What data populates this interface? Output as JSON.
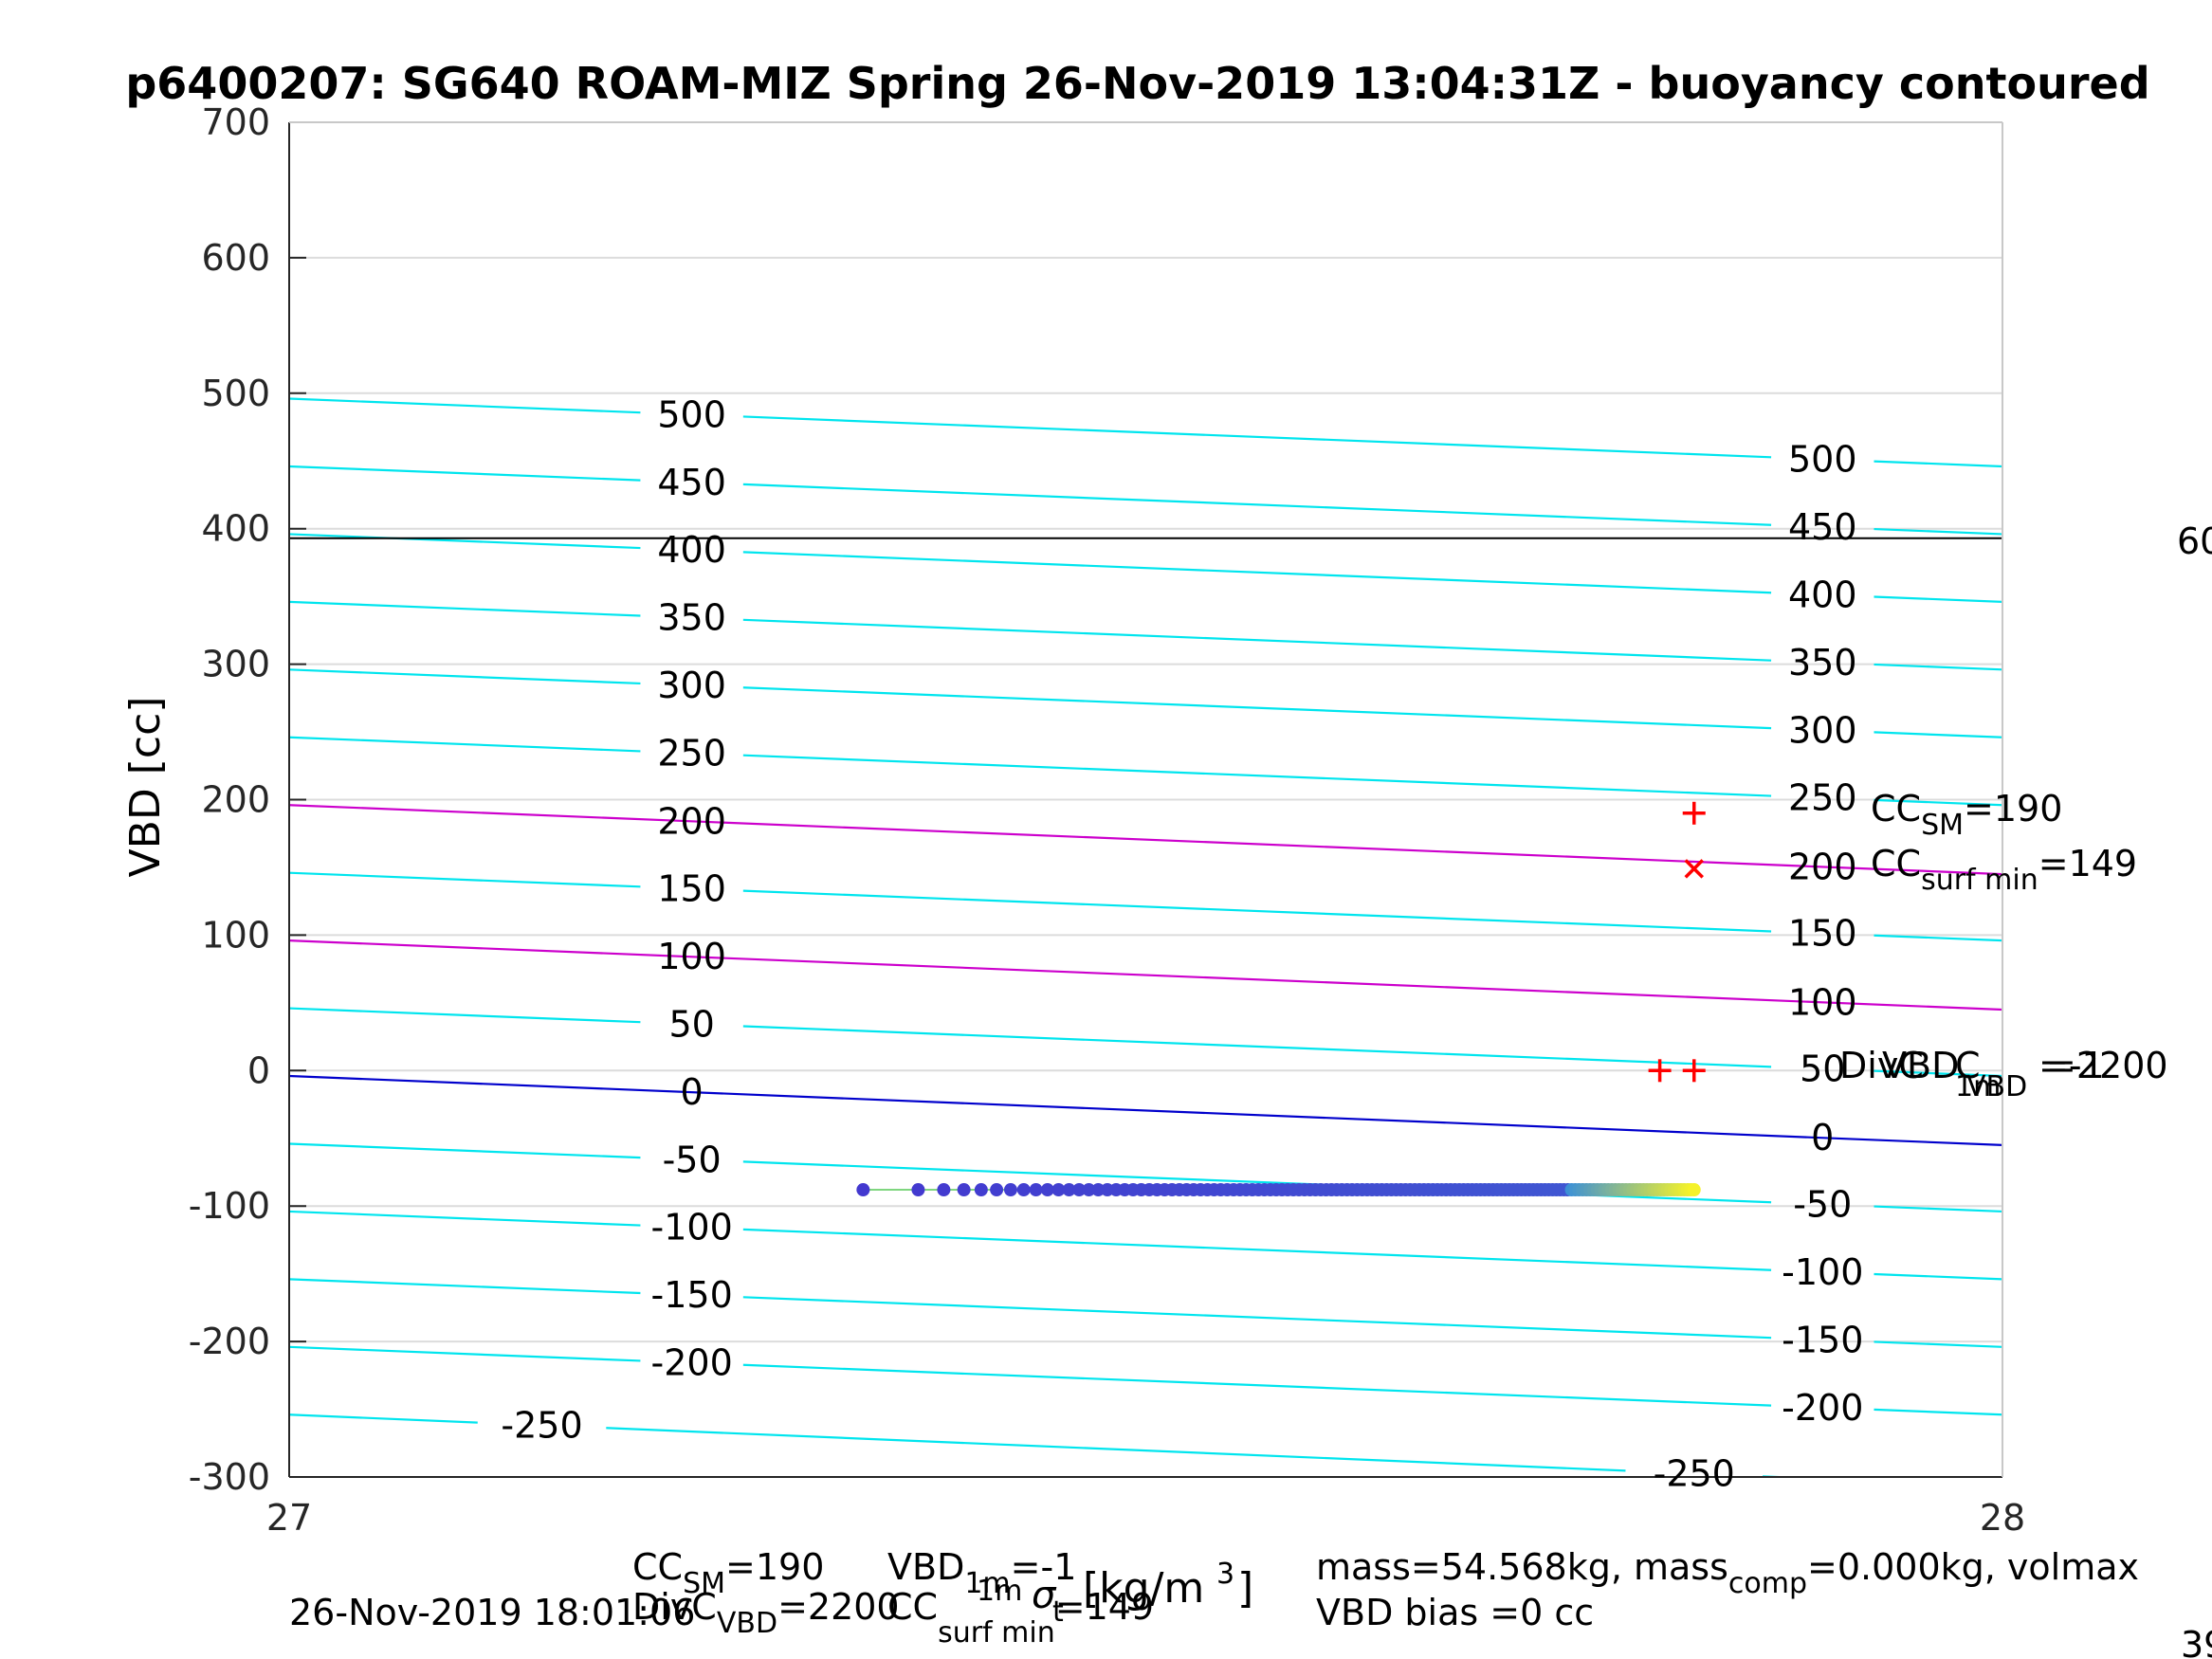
{
  "title": "p6400207: SG640 ROAM-MIZ Spring 26-Nov-2019 13:04:31Z - buoyancy contoured",
  "ylabel": "VBD [cc]",
  "xlabel_sigma": "σ",
  "xlabel_sub": "t",
  "xlabel_sup": "1m",
  "xlabel_units": "[kg/m",
  "xlabel_units_sup": "3",
  "xlabel_units_close": "]",
  "timestamp": "26-Nov-2019 18:01:06",
  "right_edge_top": "60",
  "right_edge_bottom": "39",
  "colors": {
    "contour": "#00e5ee",
    "magenta": "#cc00cc",
    "blue": "#0000cc",
    "black_line": "#000000",
    "marker": "#ff0000",
    "grid": "#dcdcdc",
    "points_start": "#4338cf",
    "points_mid": "#3a8fd8",
    "points_end": "#f5f22a"
  },
  "annotations": {
    "cc_sm_label": "CC",
    "cc_sm_sub": "SM",
    "cc_sm_value": "=190",
    "cc_surf_label": "CC",
    "cc_surf_sub": "surf min",
    "cc_surf_value": "=149",
    "overlap_a": "DivC",
    "overlap_b": "VBD",
    "overlap_c": "C",
    "overlap_sub_a": "1m",
    "overlap_sub_b": "VBD",
    "overlap_value_a": "=-1",
    "overlap_value_b": "=2200"
  },
  "footer": {
    "line1_a": "CC",
    "line1_a_sub": "SM",
    "line1_a_val": "=190",
    "line1_b": "VBD",
    "line1_b_sub": "1m",
    "line1_b_val": "=-1",
    "line2_a": "DivC",
    "line2_a_sub": "VBD",
    "line2_a_val": "=2200",
    "line2_b": "CC",
    "line2_b_sub": "surf min",
    "line2_b_val": "=149",
    "mass_text": "mass=54.568kg, mass",
    "mass_sub": "comp",
    "mass_rest": "=0.000kg, volmax",
    "bias_text": "VBD bias =0 cc"
  },
  "chart_data": {
    "type": "scatter",
    "title": "p6400207: SG640 ROAM-MIZ Spring 26-Nov-2019 13:04:31Z - buoyancy contoured",
    "xlabel": "σt 1m [kg/m3]",
    "ylabel": "VBD [cc]",
    "xlim": [
      27,
      28
    ],
    "ylim": [
      -300,
      700
    ],
    "x_ticks": [
      "27",
      "28"
    ],
    "y_ticks": [
      "-300",
      "-200",
      "-100",
      "0",
      "100",
      "200",
      "300",
      "400",
      "500",
      "600",
      "700"
    ],
    "grid": true,
    "contour_series": [
      {
        "level": -250,
        "label": "-250",
        "y_start": -254,
        "y_end": -307
      },
      {
        "level": -200,
        "label": "-200",
        "y_start": -204,
        "y_end": -254
      },
      {
        "level": -150,
        "label": "-150",
        "y_start": -154,
        "y_end": -204
      },
      {
        "level": -100,
        "label": "-100",
        "y_start": -104,
        "y_end": -154
      },
      {
        "level": -50,
        "label": "-50",
        "y_start": -54,
        "y_end": -104
      },
      {
        "level": 0,
        "label": "0",
        "y_start": -4,
        "y_end": -55
      },
      {
        "level": 50,
        "label": "50",
        "y_start": 46,
        "y_end": -4
      },
      {
        "level": 100,
        "label": "100",
        "y_start": 96,
        "y_end": 45
      },
      {
        "level": 150,
        "label": "150",
        "y_start": 146,
        "y_end": 96
      },
      {
        "level": 200,
        "label": "200",
        "y_start": 196,
        "y_end": 145
      },
      {
        "level": 250,
        "label": "250",
        "y_start": 246,
        "y_end": 196
      },
      {
        "level": 300,
        "label": "300",
        "y_start": 296,
        "y_end": 246
      },
      {
        "level": 350,
        "label": "350",
        "y_start": 346,
        "y_end": 296
      },
      {
        "level": 400,
        "label": "400",
        "y_start": 396,
        "y_end": 346
      },
      {
        "level": 450,
        "label": "450",
        "y_start": 446,
        "y_end": 396
      },
      {
        "level": 500,
        "label": "500",
        "y_start": 496,
        "y_end": 446
      }
    ],
    "highlight_contours": [
      {
        "level": 200,
        "color": "magenta"
      },
      {
        "level": 100,
        "color": "magenta"
      },
      {
        "level": 0,
        "color": "blue"
      }
    ],
    "horizontal_line": {
      "y": 393
    },
    "markers": [
      {
        "name": "CC_SM",
        "x": 27.82,
        "y": 190,
        "shape": "plus"
      },
      {
        "name": "CC_surf_min",
        "x": 27.82,
        "y": 149,
        "shape": "x"
      },
      {
        "name": "DivC_VBD",
        "x": 27.8,
        "y": 0,
        "shape": "plus"
      },
      {
        "name": "VBD_1m",
        "x": 27.82,
        "y": 0,
        "shape": "plus"
      }
    ],
    "points": {
      "y": -88,
      "x_start": 27.335,
      "x_end": 27.82,
      "count": 140,
      "color_scale": [
        "#4338cf",
        "#3a8fd8",
        "#f5f22a"
      ]
    }
  }
}
